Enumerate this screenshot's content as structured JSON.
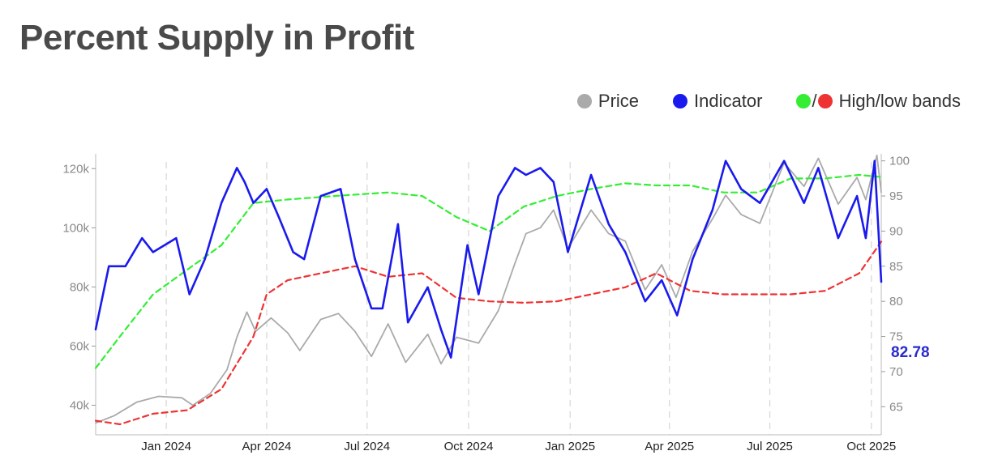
{
  "chart_data": {
    "type": "line",
    "title": "Percent Supply in Profit",
    "legend": {
      "position": "top-right",
      "items": [
        {
          "label": "Price",
          "color": "#aaaaaa"
        },
        {
          "label": "Indicator",
          "color": "#1a1aee"
        },
        {
          "label": "High/low bands",
          "colors": [
            "#33ee33",
            "#ee3333"
          ],
          "separator": "/"
        }
      ]
    },
    "x_axis": {
      "range": [
        "2023-10-29",
        "2025-10-10"
      ],
      "ticks": [
        {
          "date": "2024-01-01",
          "label": "Jan 2024"
        },
        {
          "date": "2024-04-01",
          "label": "Apr 2024"
        },
        {
          "date": "2024-07-01",
          "label": "Jul 2024"
        },
        {
          "date": "2024-10-01",
          "label": "Oct 2024"
        },
        {
          "date": "2025-01-01",
          "label": "Jan 2025"
        },
        {
          "date": "2025-04-01",
          "label": "Apr 2025"
        },
        {
          "date": "2025-07-01",
          "label": "Jul 2025"
        },
        {
          "date": "2025-10-01",
          "label": "Oct 2025"
        }
      ],
      "vertical_gridlines": true
    },
    "y_left": {
      "range": [
        30000,
        125000
      ],
      "ticks": [
        {
          "v": 40000,
          "label": "40k"
        },
        {
          "v": 60000,
          "label": "60k"
        },
        {
          "v": 80000,
          "label": "80k"
        },
        {
          "v": 100000,
          "label": "100k"
        },
        {
          "v": 120000,
          "label": "120k"
        }
      ]
    },
    "y_right": {
      "range": [
        61,
        101
      ],
      "ticks": [
        {
          "v": 65,
          "label": "65"
        },
        {
          "v": 70,
          "label": "70"
        },
        {
          "v": 75,
          "label": "75"
        },
        {
          "v": 80,
          "label": "80"
        },
        {
          "v": 85,
          "label": "85"
        },
        {
          "v": 90,
          "label": "90"
        },
        {
          "v": 95,
          "label": "95"
        },
        {
          "v": 100,
          "label": "100"
        }
      ]
    },
    "last_value_label": "82.78",
    "series": [
      {
        "name": "Price",
        "axis": "left",
        "color": "#aaaaaa",
        "style": "solid",
        "points": [
          [
            "2023-10-29",
            34000
          ],
          [
            "2023-11-15",
            36500
          ],
          [
            "2023-12-05",
            41000
          ],
          [
            "2023-12-25",
            43000
          ],
          [
            "2024-01-15",
            42500
          ],
          [
            "2024-01-25",
            40000
          ],
          [
            "2024-02-10",
            44000
          ],
          [
            "2024-02-25",
            52000
          ],
          [
            "2024-03-05",
            63000
          ],
          [
            "2024-03-14",
            71500
          ],
          [
            "2024-03-22",
            65000
          ],
          [
            "2024-04-05",
            69500
          ],
          [
            "2024-04-20",
            64500
          ],
          [
            "2024-05-01",
            58500
          ],
          [
            "2024-05-20",
            69000
          ],
          [
            "2024-06-05",
            71000
          ],
          [
            "2024-06-20",
            65000
          ],
          [
            "2024-07-05",
            56500
          ],
          [
            "2024-07-20",
            67500
          ],
          [
            "2024-08-05",
            54500
          ],
          [
            "2024-08-25",
            64000
          ],
          [
            "2024-09-06",
            54000
          ],
          [
            "2024-09-20",
            63000
          ],
          [
            "2024-10-10",
            61000
          ],
          [
            "2024-10-28",
            72000
          ],
          [
            "2024-11-12",
            88000
          ],
          [
            "2024-11-22",
            98000
          ],
          [
            "2024-12-05",
            100000
          ],
          [
            "2024-12-17",
            106000
          ],
          [
            "2024-12-30",
            93000
          ],
          [
            "2025-01-20",
            106000
          ],
          [
            "2025-02-05",
            98000
          ],
          [
            "2025-02-20",
            95500
          ],
          [
            "2025-03-10",
            79000
          ],
          [
            "2025-03-25",
            87500
          ],
          [
            "2025-04-07",
            76500
          ],
          [
            "2025-04-22",
            92000
          ],
          [
            "2025-05-10",
            103000
          ],
          [
            "2025-05-22",
            111000
          ],
          [
            "2025-06-05",
            104500
          ],
          [
            "2025-06-22",
            101500
          ],
          [
            "2025-07-14",
            122000
          ],
          [
            "2025-08-01",
            114000
          ],
          [
            "2025-08-14",
            123500
          ],
          [
            "2025-09-01",
            108000
          ],
          [
            "2025-09-18",
            117000
          ],
          [
            "2025-09-26",
            109500
          ],
          [
            "2025-10-06",
            124500
          ],
          [
            "2025-10-10",
            112000
          ]
        ]
      },
      {
        "name": "Indicator",
        "axis": "right",
        "color": "#1a1aee",
        "style": "solid",
        "points": [
          [
            "2023-10-29",
            76
          ],
          [
            "2023-11-10",
            85
          ],
          [
            "2023-11-25",
            85
          ],
          [
            "2023-12-10",
            89
          ],
          [
            "2023-12-20",
            87
          ],
          [
            "2024-01-10",
            89
          ],
          [
            "2024-01-22",
            81
          ],
          [
            "2024-02-05",
            86
          ],
          [
            "2024-02-20",
            94
          ],
          [
            "2024-03-05",
            99
          ],
          [
            "2024-03-12",
            97
          ],
          [
            "2024-03-20",
            94
          ],
          [
            "2024-04-01",
            96
          ],
          [
            "2024-04-12",
            92
          ],
          [
            "2024-04-25",
            87
          ],
          [
            "2024-05-05",
            86
          ],
          [
            "2024-05-20",
            95
          ],
          [
            "2024-06-07",
            96
          ],
          [
            "2024-06-20",
            86
          ],
          [
            "2024-07-05",
            79
          ],
          [
            "2024-07-15",
            79
          ],
          [
            "2024-07-29",
            91
          ],
          [
            "2024-08-07",
            77
          ],
          [
            "2024-08-25",
            82
          ],
          [
            "2024-09-06",
            76
          ],
          [
            "2024-09-15",
            72
          ],
          [
            "2024-09-30",
            88
          ],
          [
            "2024-10-10",
            81
          ],
          [
            "2024-10-28",
            95
          ],
          [
            "2024-11-12",
            99
          ],
          [
            "2024-11-22",
            98
          ],
          [
            "2024-12-05",
            99
          ],
          [
            "2024-12-17",
            97
          ],
          [
            "2024-12-30",
            87
          ],
          [
            "2025-01-20",
            98
          ],
          [
            "2025-02-05",
            91
          ],
          [
            "2025-02-20",
            87
          ],
          [
            "2025-03-10",
            80
          ],
          [
            "2025-03-25",
            83
          ],
          [
            "2025-04-08",
            78
          ],
          [
            "2025-04-22",
            86
          ],
          [
            "2025-05-10",
            93
          ],
          [
            "2025-05-22",
            100
          ],
          [
            "2025-06-05",
            96
          ],
          [
            "2025-06-22",
            94
          ],
          [
            "2025-07-14",
            100
          ],
          [
            "2025-08-01",
            94
          ],
          [
            "2025-08-14",
            99
          ],
          [
            "2025-09-01",
            89
          ],
          [
            "2025-09-18",
            95
          ],
          [
            "2025-09-26",
            89
          ],
          [
            "2025-10-04",
            100
          ],
          [
            "2025-10-10",
            82.78
          ]
        ]
      },
      {
        "name": "High band",
        "axis": "right",
        "color": "#33ee33",
        "style": "dashed",
        "points": [
          [
            "2023-10-29",
            70.5
          ],
          [
            "2023-11-20",
            75
          ],
          [
            "2023-12-20",
            81
          ],
          [
            "2024-01-20",
            84.5
          ],
          [
            "2024-02-20",
            88
          ],
          [
            "2024-03-20",
            94
          ],
          [
            "2024-04-20",
            94.5
          ],
          [
            "2024-06-01",
            95
          ],
          [
            "2024-07-20",
            95.5
          ],
          [
            "2024-08-20",
            95
          ],
          [
            "2024-09-20",
            92
          ],
          [
            "2024-10-20",
            90
          ],
          [
            "2024-11-20",
            93.5
          ],
          [
            "2024-12-20",
            95
          ],
          [
            "2025-01-20",
            96
          ],
          [
            "2025-02-20",
            96.8
          ],
          [
            "2025-03-20",
            96.5
          ],
          [
            "2025-04-20",
            96.5
          ],
          [
            "2025-05-20",
            95.5
          ],
          [
            "2025-06-20",
            95.5
          ],
          [
            "2025-07-20",
            97.5
          ],
          [
            "2025-08-20",
            97.5
          ],
          [
            "2025-09-20",
            98
          ],
          [
            "2025-10-10",
            97.7
          ]
        ]
      },
      {
        "name": "Low band",
        "axis": "right",
        "color": "#ee3333",
        "style": "dashed",
        "points": [
          [
            "2023-10-29",
            63
          ],
          [
            "2023-11-20",
            62.5
          ],
          [
            "2023-12-20",
            64
          ],
          [
            "2024-01-20",
            64.5
          ],
          [
            "2024-02-20",
            67.5
          ],
          [
            "2024-03-20",
            75
          ],
          [
            "2024-04-01",
            81
          ],
          [
            "2024-04-20",
            83
          ],
          [
            "2024-05-20",
            84
          ],
          [
            "2024-06-20",
            85
          ],
          [
            "2024-07-20",
            83.5
          ],
          [
            "2024-08-20",
            84
          ],
          [
            "2024-09-20",
            80.5
          ],
          [
            "2024-10-20",
            80
          ],
          [
            "2024-11-20",
            79.8
          ],
          [
            "2024-12-20",
            80
          ],
          [
            "2025-01-20",
            81
          ],
          [
            "2025-02-20",
            82
          ],
          [
            "2025-03-20",
            84
          ],
          [
            "2025-04-20",
            81.5
          ],
          [
            "2025-05-20",
            81
          ],
          [
            "2025-07-20",
            81
          ],
          [
            "2025-08-20",
            81.5
          ],
          [
            "2025-09-20",
            84
          ],
          [
            "2025-10-10",
            88.5
          ]
        ]
      }
    ]
  }
}
